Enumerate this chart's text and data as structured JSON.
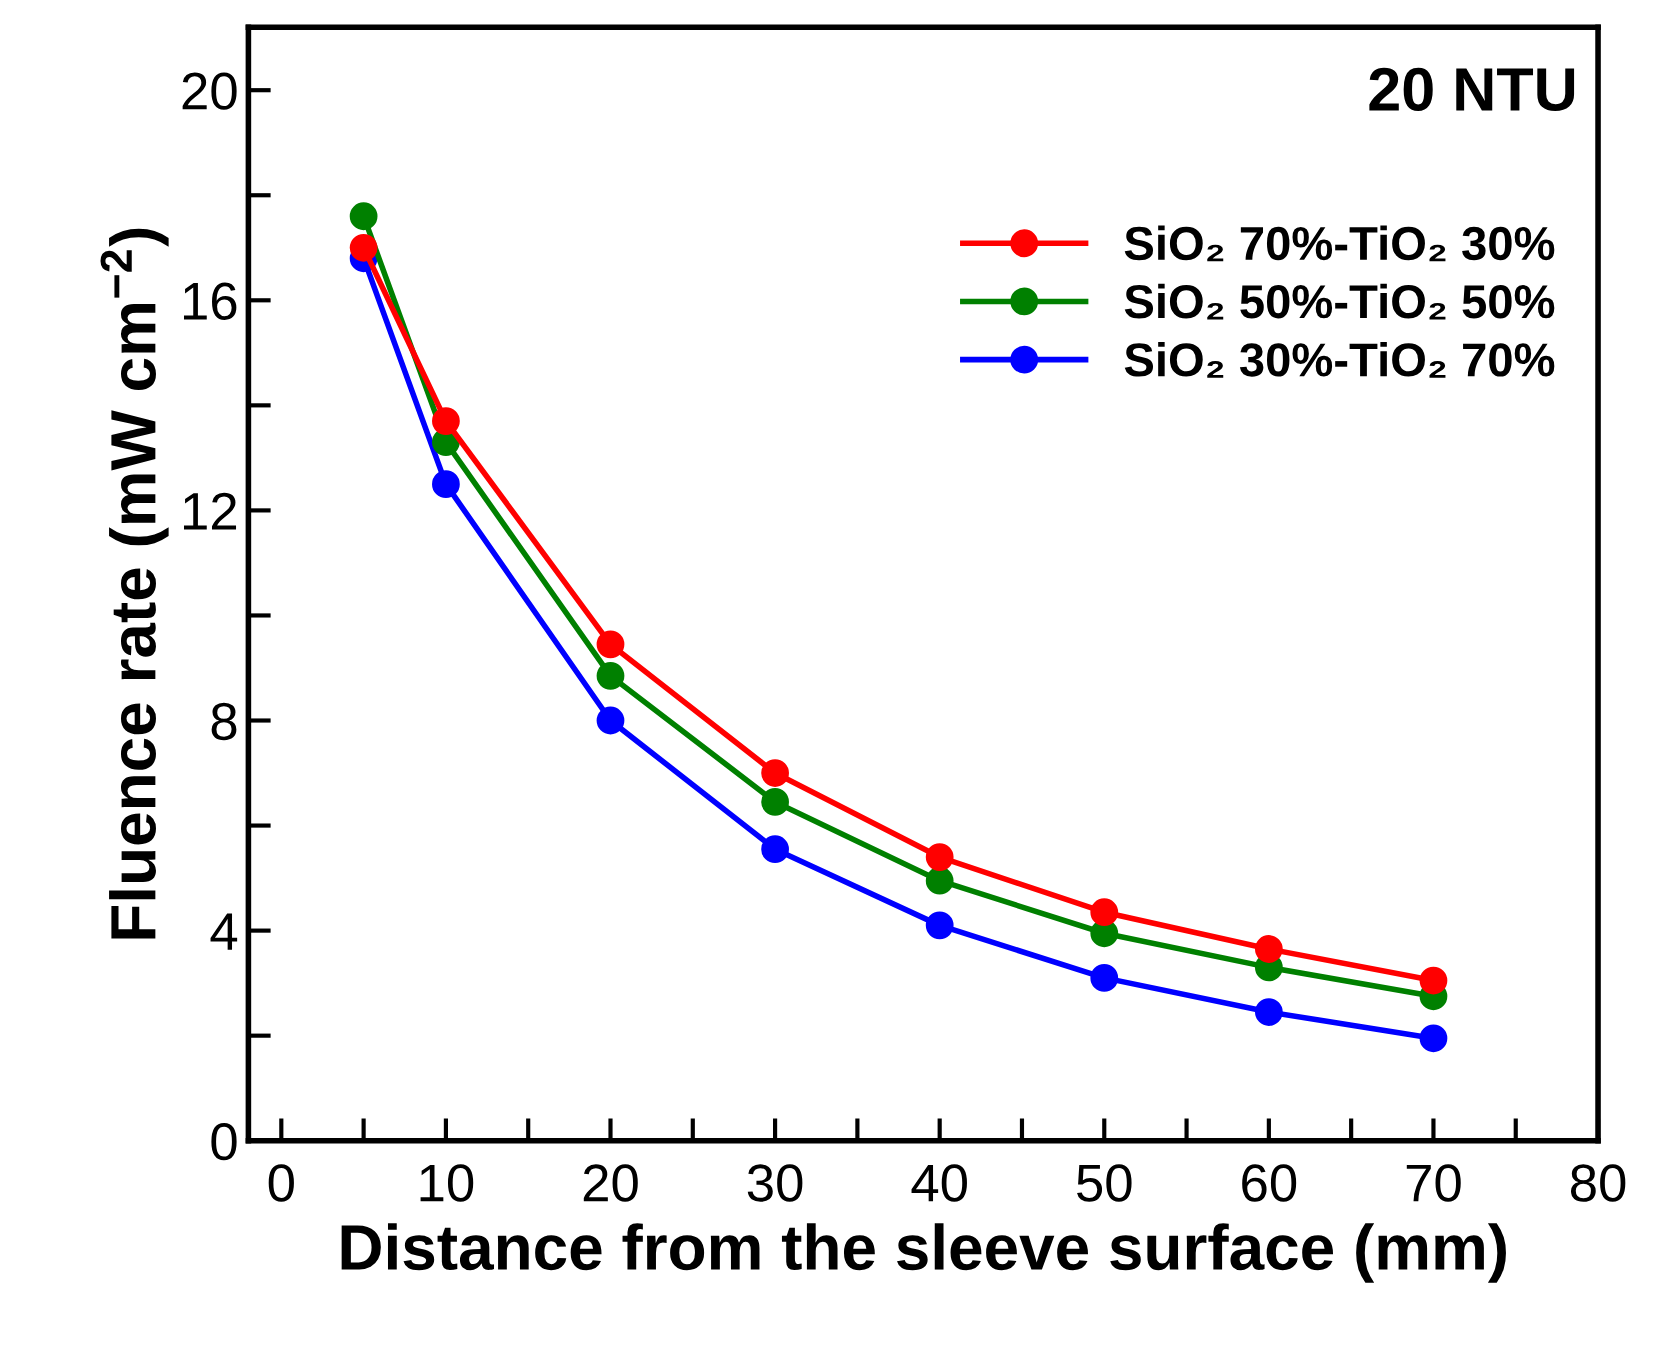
{
  "chart_data": {
    "type": "line",
    "xlabel": "Distance from the sleeve surface (mm)",
    "ylabel": "Fluence rate (mW cm$^{−2}$)",
    "annotations": [
      "20 NTU"
    ],
    "x": [
      5,
      10,
      20,
      30,
      40,
      50,
      60,
      70
    ],
    "series": [
      {
        "name": "SiO₂ 70%-TiO₂ 30%",
        "color": "#ff0000",
        "values": [
          17.0,
          13.7,
          9.45,
          7.0,
          5.4,
          4.35,
          3.65,
          3.05
        ]
      },
      {
        "name": "SiO₂ 50%-TiO₂ 50%",
        "color": "#008000",
        "values": [
          17.6,
          13.3,
          8.85,
          6.45,
          4.95,
          3.95,
          3.3,
          2.75
        ]
      },
      {
        "name": "SiO₂ 30%-TiO₂ 70%",
        "color": "#0000ff",
        "values": [
          16.8,
          12.5,
          8.0,
          5.55,
          4.1,
          3.1,
          2.45,
          1.95
        ]
      }
    ],
    "xlim": [
      -2,
      80
    ],
    "xticks": [
      0,
      {
        "value": 5,
        "label": null
      },
      10,
      {
        "value": 15,
        "label": null
      },
      20,
      {
        "value": 25,
        "label": null
      },
      30,
      {
        "value": 35,
        "label": null
      },
      40,
      {
        "value": 45,
        "label": null
      },
      50,
      {
        "value": 55,
        "label": null
      },
      60,
      {
        "value": 65,
        "label": null
      },
      70,
      {
        "value": 75,
        "label": null
      },
      80
    ],
    "ylim": [
      0,
      21.2
    ],
    "yticks": [
      0,
      {
        "value": 2,
        "label": null
      },
      4,
      {
        "value": 6,
        "label": null
      },
      8,
      {
        "value": 10,
        "label": null
      },
      12,
      {
        "value": 14,
        "label": null
      },
      16,
      {
        "value": 18,
        "label": null
      },
      20
    ],
    "marker": "circle",
    "line_style": "solid",
    "legend": "top right",
    "grid": false
  }
}
